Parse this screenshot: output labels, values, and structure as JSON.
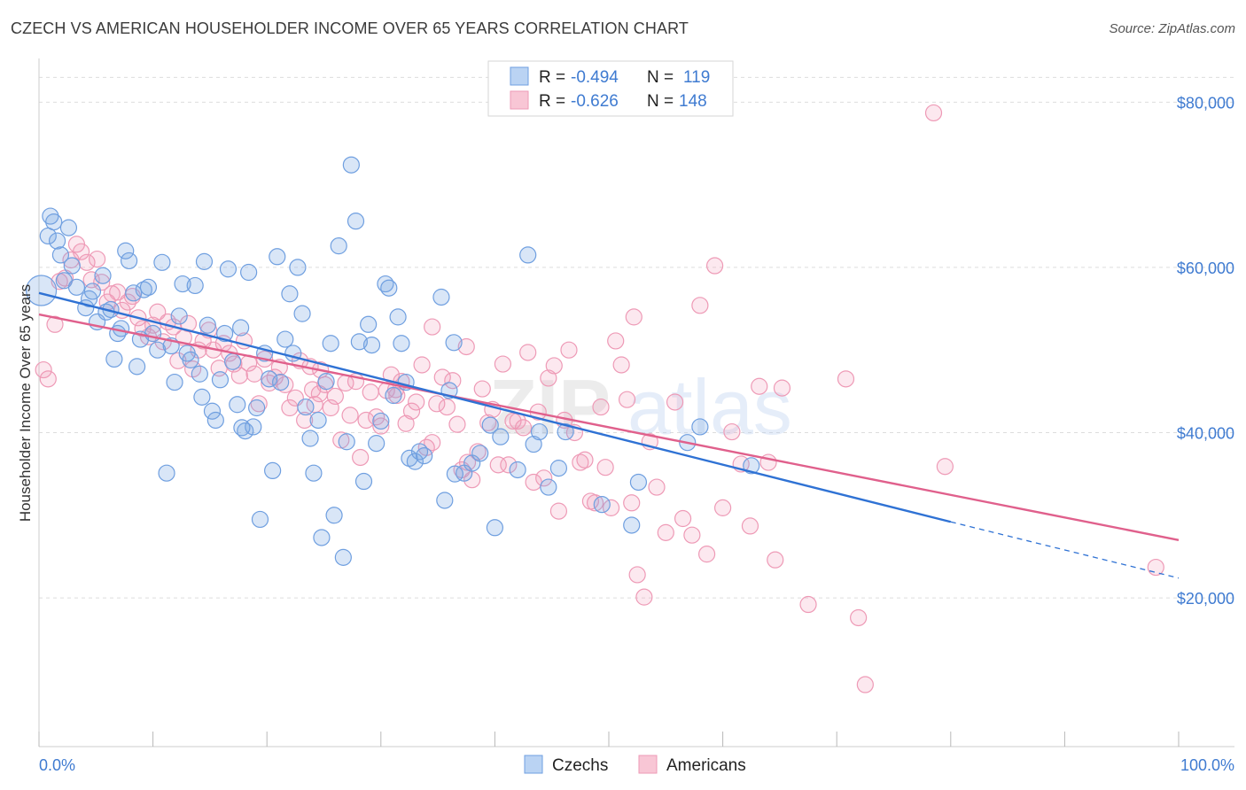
{
  "header": {
    "title": "CZECH VS AMERICAN HOUSEHOLDER INCOME OVER 65 YEARS CORRELATION CHART",
    "source": "Source: ZipAtlas.com"
  },
  "watermark": {
    "zip": "ZIP",
    "atlas": "atlas"
  },
  "legend": {
    "rows": [
      {
        "r_label": "R =",
        "r_value": "-0.494",
        "n_label": "N =",
        "n_value": "119",
        "color": "#a9c8f0"
      },
      {
        "r_label": "R =",
        "r_value": "-0.626",
        "n_label": "N =",
        "n_value": "148",
        "color": "#f6b8cb"
      }
    ]
  },
  "bottom_legend": [
    {
      "label": "Czechs",
      "color": "#a9c8f0"
    },
    {
      "label": "Americans",
      "color": "#f6b8cb"
    }
  ],
  "colors": {
    "czech_fill": "rgba(120,165,225,0.28)",
    "czech_stroke": "#6f9fe0",
    "czech_line": "#2f72d4",
    "american_fill": "rgba(240,150,180,0.22)",
    "american_stroke": "#ee9ab6",
    "american_line": "#e0608c",
    "axis_text": "#3f7bd1",
    "grid": "#dddddd"
  },
  "chart_data": {
    "type": "scatter",
    "title": "CZECH VS AMERICAN HOUSEHOLDER INCOME OVER 65 YEARS CORRELATION CHART",
    "xlabel": "",
    "ylabel": "Householder Income Over 65 years",
    "xlim": [
      0,
      100
    ],
    "ylim": [
      2000,
      84000
    ],
    "x_tick_labels": [
      "0.0%",
      "100.0%"
    ],
    "y_ticks": [
      20000,
      40000,
      60000,
      80000
    ],
    "y_tick_labels": [
      "$20,000",
      "$40,000",
      "$60,000",
      "$80,000"
    ],
    "grid": true,
    "legend_position": "top-center",
    "series": [
      {
        "name": "Czechs",
        "r": -0.494,
        "n": 119,
        "trend": {
          "x0": 0,
          "y0": 56900,
          "x1": 80,
          "y1": 29200,
          "dashed_to_x": 100,
          "dashed_to_y": 22400
        },
        "points": [
          [
            0.2,
            57200
          ],
          [
            0.8,
            63800
          ],
          [
            1.0,
            66200
          ],
          [
            1.3,
            65500
          ],
          [
            1.6,
            63200
          ],
          [
            1.9,
            61500
          ],
          [
            2.2,
            58400
          ],
          [
            2.6,
            64800
          ],
          [
            2.9,
            60200
          ],
          [
            3.3,
            57600
          ],
          [
            4.1,
            55100
          ],
          [
            4.4,
            56200
          ],
          [
            4.7,
            57100
          ],
          [
            5.1,
            53400
          ],
          [
            5.6,
            59000
          ],
          [
            5.9,
            54600
          ],
          [
            6.3,
            54900
          ],
          [
            6.6,
            48900
          ],
          [
            6.9,
            52000
          ],
          [
            7.2,
            52600
          ],
          [
            7.6,
            62000
          ],
          [
            7.9,
            60800
          ],
          [
            8.3,
            56900
          ],
          [
            8.6,
            48000
          ],
          [
            8.9,
            51300
          ],
          [
            9.2,
            57300
          ],
          [
            9.6,
            57600
          ],
          [
            10.0,
            52000
          ],
          [
            10.4,
            50000
          ],
          [
            10.8,
            60600
          ],
          [
            11.2,
            35100
          ],
          [
            11.6,
            50500
          ],
          [
            11.9,
            46100
          ],
          [
            12.3,
            54100
          ],
          [
            12.6,
            58000
          ],
          [
            13.0,
            49600
          ],
          [
            13.3,
            48800
          ],
          [
            13.7,
            57800
          ],
          [
            14.1,
            47100
          ],
          [
            14.5,
            60700
          ],
          [
            14.8,
            53000
          ],
          [
            15.2,
            42600
          ],
          [
            15.5,
            41500
          ],
          [
            15.9,
            46400
          ],
          [
            16.3,
            52000
          ],
          [
            16.6,
            59800
          ],
          [
            17.0,
            48600
          ],
          [
            17.4,
            43400
          ],
          [
            17.7,
            52700
          ],
          [
            18.1,
            40200
          ],
          [
            18.4,
            59400
          ],
          [
            18.8,
            40700
          ],
          [
            19.1,
            43000
          ],
          [
            19.4,
            29500
          ],
          [
            19.8,
            49600
          ],
          [
            20.2,
            46500
          ],
          [
            20.5,
            35400
          ],
          [
            20.9,
            61300
          ],
          [
            21.2,
            46100
          ],
          [
            21.6,
            51300
          ],
          [
            22.0,
            56800
          ],
          [
            22.3,
            49600
          ],
          [
            22.7,
            60000
          ],
          [
            23.1,
            54400
          ],
          [
            23.4,
            43100
          ],
          [
            23.8,
            39300
          ],
          [
            24.1,
            35100
          ],
          [
            24.5,
            41500
          ],
          [
            24.8,
            27300
          ],
          [
            25.2,
            46200
          ],
          [
            25.6,
            50800
          ],
          [
            25.9,
            30000
          ],
          [
            26.3,
            62600
          ],
          [
            26.7,
            24900
          ],
          [
            27.0,
            38900
          ],
          [
            27.4,
            72400
          ],
          [
            27.8,
            65600
          ],
          [
            28.1,
            51000
          ],
          [
            28.5,
            34100
          ],
          [
            28.9,
            53100
          ],
          [
            29.2,
            50600
          ],
          [
            29.6,
            38700
          ],
          [
            30.0,
            41400
          ],
          [
            30.4,
            58000
          ],
          [
            30.7,
            57500
          ],
          [
            31.1,
            44500
          ],
          [
            31.5,
            54000
          ],
          [
            31.8,
            50800
          ],
          [
            32.2,
            46100
          ],
          [
            32.5,
            36900
          ],
          [
            33.0,
            36500
          ],
          [
            33.4,
            37700
          ],
          [
            33.8,
            37200
          ],
          [
            35.3,
            56400
          ],
          [
            36.0,
            45100
          ],
          [
            36.4,
            50900
          ],
          [
            37.3,
            35100
          ],
          [
            38.0,
            36300
          ],
          [
            38.7,
            37500
          ],
          [
            39.6,
            40900
          ],
          [
            40.0,
            28500
          ],
          [
            40.5,
            39500
          ],
          [
            42.0,
            35500
          ],
          [
            42.9,
            61500
          ],
          [
            43.4,
            38600
          ],
          [
            43.9,
            40100
          ],
          [
            44.7,
            33400
          ],
          [
            45.6,
            35700
          ],
          [
            46.2,
            40100
          ],
          [
            49.4,
            31300
          ],
          [
            52.0,
            28800
          ],
          [
            52.6,
            34000
          ],
          [
            56.9,
            38800
          ],
          [
            58.0,
            40700
          ],
          [
            62.5,
            36000
          ],
          [
            35.6,
            31800
          ],
          [
            17.8,
            40600
          ],
          [
            36.5,
            35000
          ],
          [
            14.3,
            44300
          ]
        ]
      },
      {
        "name": "Americans",
        "r": -0.626,
        "n": 148,
        "trend": {
          "x0": 0,
          "y0": 54300,
          "x1": 100,
          "y1": 27000
        },
        "points": [
          [
            0.4,
            47600
          ],
          [
            0.8,
            46500
          ],
          [
            1.4,
            53100
          ],
          [
            1.8,
            58300
          ],
          [
            2.3,
            58700
          ],
          [
            2.8,
            60900
          ],
          [
            3.3,
            62800
          ],
          [
            3.7,
            61900
          ],
          [
            4.2,
            60600
          ],
          [
            4.6,
            58500
          ],
          [
            5.1,
            61000
          ],
          [
            5.5,
            58200
          ],
          [
            6.0,
            55800
          ],
          [
            6.4,
            56800
          ],
          [
            6.9,
            57000
          ],
          [
            7.3,
            54800
          ],
          [
            7.8,
            55800
          ],
          [
            8.2,
            56500
          ],
          [
            8.7,
            53900
          ],
          [
            9.1,
            52600
          ],
          [
            9.6,
            51600
          ],
          [
            10.0,
            53000
          ],
          [
            10.4,
            54600
          ],
          [
            10.9,
            51000
          ],
          [
            11.3,
            53400
          ],
          [
            11.8,
            52800
          ],
          [
            12.2,
            48700
          ],
          [
            12.7,
            51500
          ],
          [
            13.1,
            53200
          ],
          [
            13.5,
            47700
          ],
          [
            14.0,
            50000
          ],
          [
            14.4,
            51100
          ],
          [
            14.9,
            52400
          ],
          [
            15.3,
            50000
          ],
          [
            15.8,
            47800
          ],
          [
            16.2,
            50800
          ],
          [
            16.7,
            49600
          ],
          [
            17.1,
            48300
          ],
          [
            17.6,
            46900
          ],
          [
            18.0,
            51100
          ],
          [
            18.4,
            48400
          ],
          [
            18.9,
            47100
          ],
          [
            19.3,
            43500
          ],
          [
            19.8,
            48900
          ],
          [
            20.2,
            46000
          ],
          [
            20.7,
            46700
          ],
          [
            21.1,
            47900
          ],
          [
            21.6,
            45800
          ],
          [
            22.0,
            43000
          ],
          [
            22.5,
            44200
          ],
          [
            22.9,
            48700
          ],
          [
            23.3,
            41500
          ],
          [
            23.8,
            48000
          ],
          [
            24.2,
            43400
          ],
          [
            24.7,
            47600
          ],
          [
            25.1,
            45800
          ],
          [
            25.6,
            43000
          ],
          [
            26.0,
            44400
          ],
          [
            26.5,
            39100
          ],
          [
            26.9,
            46000
          ],
          [
            27.3,
            42100
          ],
          [
            27.8,
            46200
          ],
          [
            28.2,
            37000
          ],
          [
            28.7,
            41500
          ],
          [
            29.1,
            44900
          ],
          [
            29.6,
            41900
          ],
          [
            30.0,
            40800
          ],
          [
            30.5,
            45100
          ],
          [
            30.9,
            47000
          ],
          [
            31.4,
            44500
          ],
          [
            31.8,
            46200
          ],
          [
            32.2,
            41100
          ],
          [
            32.7,
            42600
          ],
          [
            33.1,
            43700
          ],
          [
            33.6,
            48200
          ],
          [
            34.0,
            38200
          ],
          [
            34.5,
            38800
          ],
          [
            34.9,
            43500
          ],
          [
            35.4,
            46700
          ],
          [
            35.8,
            43100
          ],
          [
            36.3,
            46300
          ],
          [
            36.7,
            41000
          ],
          [
            37.1,
            35500
          ],
          [
            37.6,
            36400
          ],
          [
            38.0,
            34300
          ],
          [
            38.5,
            37700
          ],
          [
            38.9,
            45300
          ],
          [
            39.4,
            41200
          ],
          [
            39.8,
            42800
          ],
          [
            40.3,
            36100
          ],
          [
            40.7,
            48300
          ],
          [
            41.2,
            36100
          ],
          [
            41.6,
            41400
          ],
          [
            42.0,
            41400
          ],
          [
            42.5,
            40600
          ],
          [
            42.9,
            49700
          ],
          [
            43.4,
            34000
          ],
          [
            43.8,
            42500
          ],
          [
            44.3,
            34500
          ],
          [
            44.7,
            46600
          ],
          [
            45.2,
            48100
          ],
          [
            45.6,
            30500
          ],
          [
            46.1,
            41500
          ],
          [
            46.5,
            50000
          ],
          [
            47.0,
            40000
          ],
          [
            47.5,
            36400
          ],
          [
            47.9,
            36700
          ],
          [
            48.4,
            31700
          ],
          [
            48.8,
            31500
          ],
          [
            49.3,
            43100
          ],
          [
            49.7,
            35800
          ],
          [
            50.2,
            30900
          ],
          [
            50.6,
            51100
          ],
          [
            51.1,
            48200
          ],
          [
            51.6,
            44000
          ],
          [
            52.0,
            31500
          ],
          [
            52.5,
            22800
          ],
          [
            53.1,
            20100
          ],
          [
            53.6,
            38900
          ],
          [
            54.2,
            33400
          ],
          [
            55.0,
            27900
          ],
          [
            55.8,
            43700
          ],
          [
            56.5,
            29600
          ],
          [
            57.3,
            27600
          ],
          [
            58.0,
            55400
          ],
          [
            58.6,
            25300
          ],
          [
            59.3,
            60200
          ],
          [
            60.0,
            30900
          ],
          [
            60.8,
            40100
          ],
          [
            61.6,
            36200
          ],
          [
            62.4,
            28700
          ],
          [
            63.2,
            45600
          ],
          [
            64.0,
            36400
          ],
          [
            64.6,
            24600
          ],
          [
            65.2,
            45400
          ],
          [
            78.5,
            78700
          ],
          [
            70.8,
            46500
          ],
          [
            67.5,
            19200
          ],
          [
            71.9,
            17600
          ],
          [
            72.5,
            9500
          ],
          [
            79.5,
            35900
          ],
          [
            52.2,
            54000
          ],
          [
            37.5,
            50400
          ],
          [
            34.5,
            52800
          ],
          [
            31.3,
            45200
          ],
          [
            24.6,
            44700
          ],
          [
            24.0,
            45200
          ],
          [
            98.0,
            23700
          ]
        ]
      }
    ]
  }
}
